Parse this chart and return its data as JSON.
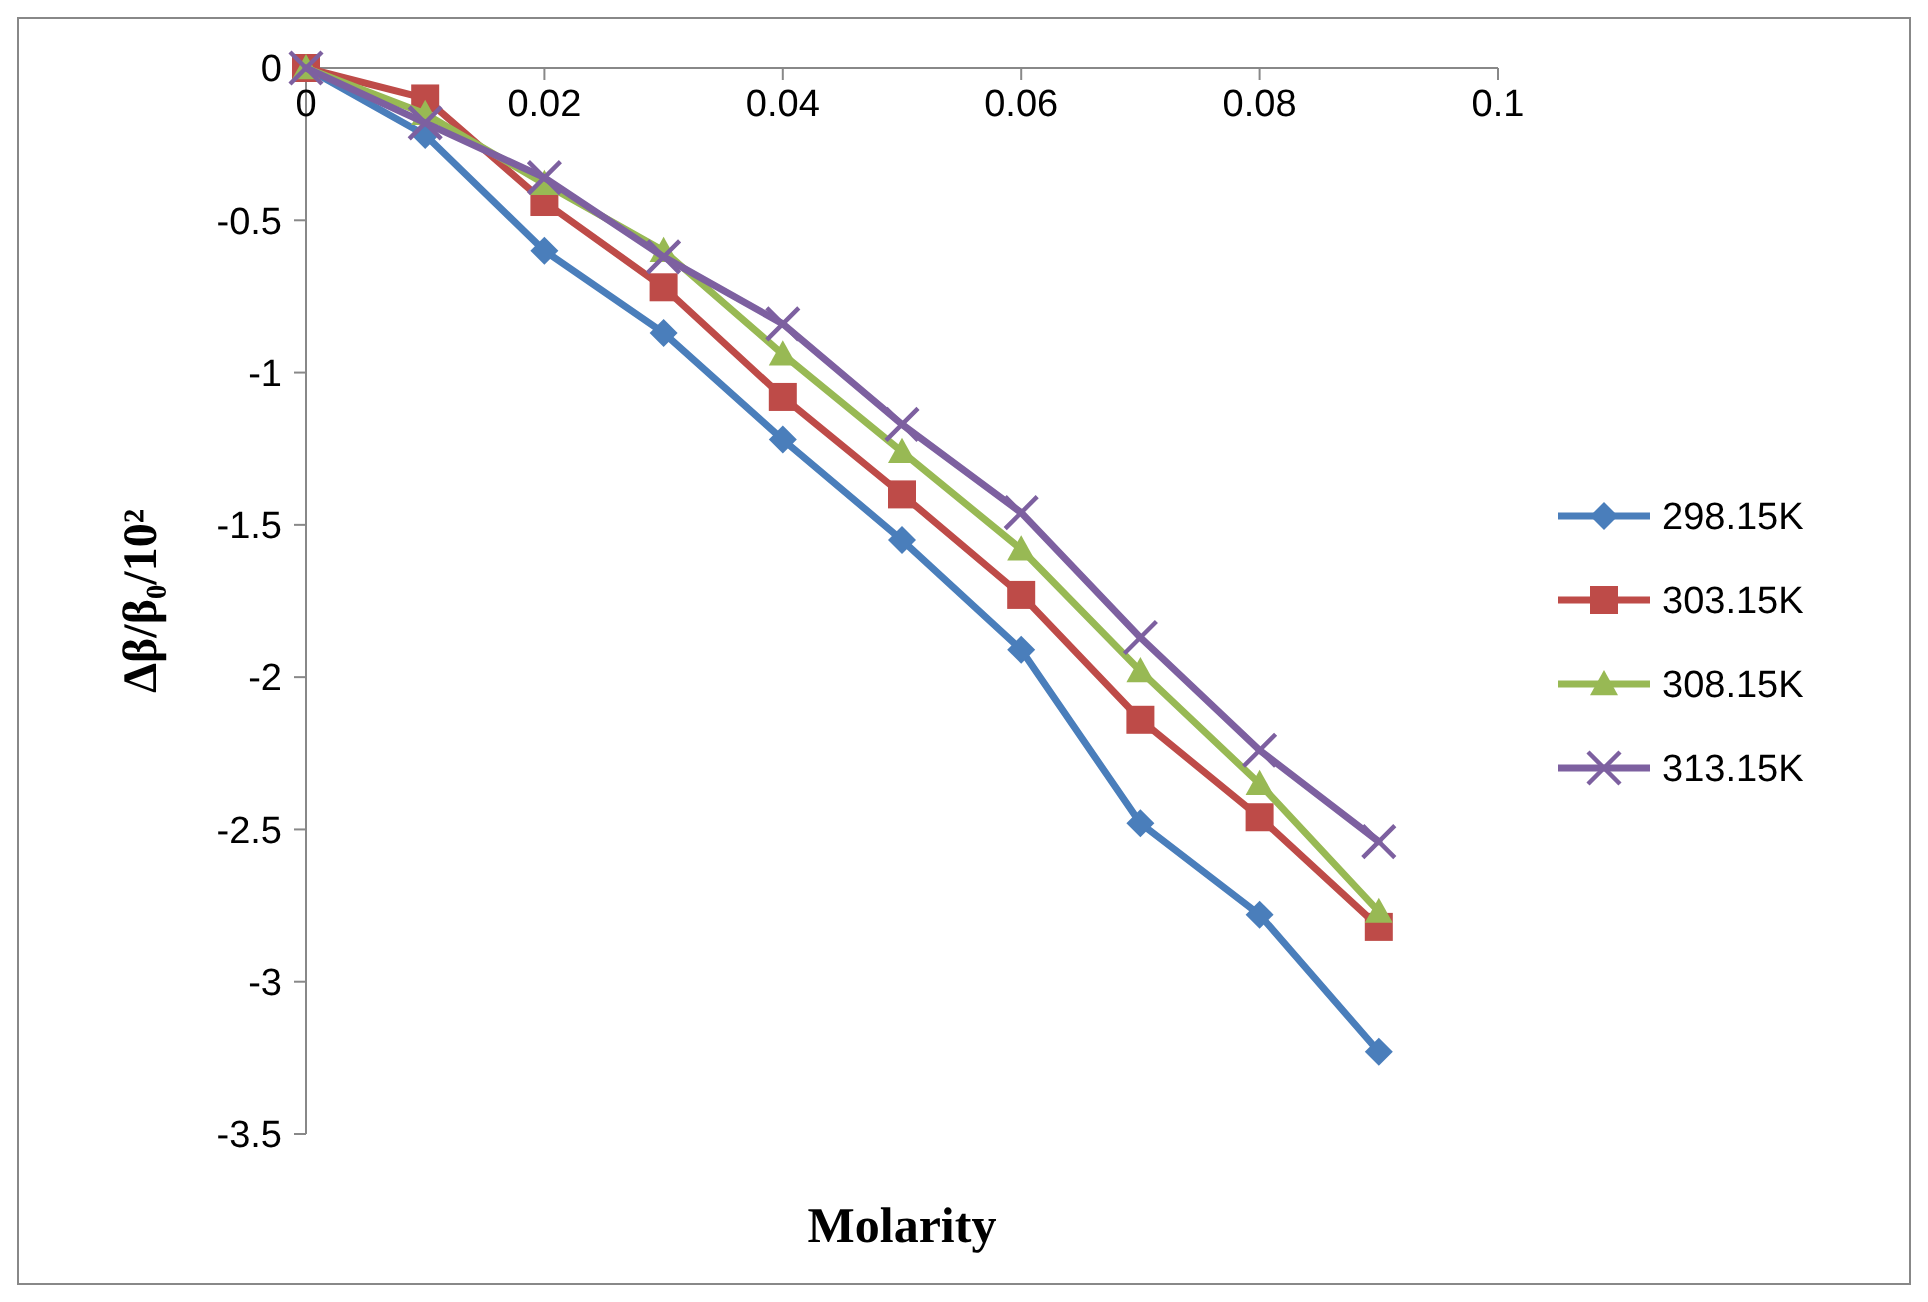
{
  "chart_data": {
    "type": "line",
    "xlabel": "Molarity",
    "ylabel": "Δβ/β₀/10²",
    "x": [
      0,
      0.01,
      0.02,
      0.03,
      0.04,
      0.05,
      0.06,
      0.07,
      0.08,
      0.09
    ],
    "xlim": [
      0,
      0.1
    ],
    "xticks": [
      0,
      0.02,
      0.04,
      0.06,
      0.08,
      0.1
    ],
    "ylim": [
      -3.5,
      0
    ],
    "yticks": [
      -3.5,
      -3,
      -2.5,
      -2,
      -1.5,
      -1,
      -0.5,
      0
    ],
    "grid": false,
    "legend": "right",
    "series": [
      {
        "name": "298.15K",
        "color": "#4a7ebb",
        "marker": "diamond",
        "values": [
          0,
          -0.22,
          -0.6,
          -0.87,
          -1.22,
          -1.55,
          -1.91,
          -2.48,
          -2.78,
          -3.23
        ]
      },
      {
        "name": "303.15K",
        "color": "#be4b48",
        "marker": "square",
        "values": [
          0,
          -0.1,
          -0.44,
          -0.72,
          -1.08,
          -1.4,
          -1.73,
          -2.14,
          -2.46,
          -2.82
        ]
      },
      {
        "name": "308.15K",
        "color": "#98b954",
        "marker": "triangle",
        "values": [
          0,
          -0.15,
          -0.38,
          -0.6,
          -0.94,
          -1.26,
          -1.58,
          -1.98,
          -2.35,
          -2.77
        ]
      },
      {
        "name": "313.15K",
        "color": "#7d60a0",
        "marker": "cross",
        "values": [
          0,
          -0.18,
          -0.36,
          -0.62,
          -0.84,
          -1.17,
          -1.46,
          -1.87,
          -2.24,
          -2.54
        ]
      }
    ]
  }
}
